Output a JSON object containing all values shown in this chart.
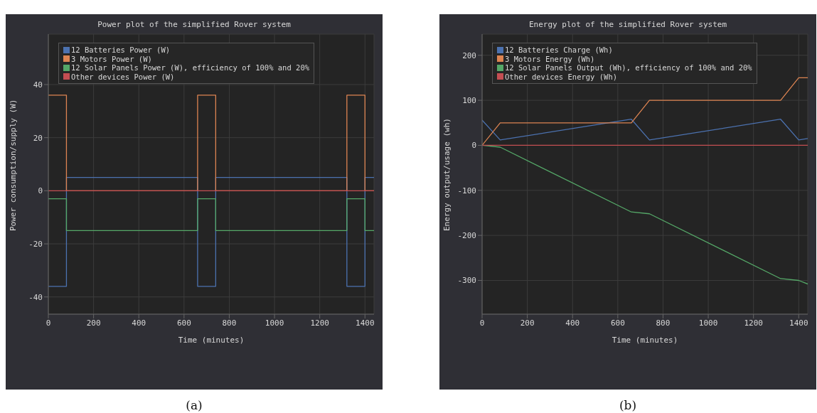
{
  "chart_data": [
    {
      "type": "line",
      "title": "Power plot of the simplified Rover system",
      "xlabel": "Time (minutes)",
      "ylabel": "Power consumption/supply (W)",
      "xlim": [
        0,
        1440
      ],
      "xticks": [
        0,
        200,
        400,
        600,
        800,
        1000,
        1200,
        1400
      ],
      "ylim": [
        -46.5,
        59
      ],
      "yticks": [
        -40,
        -20,
        0,
        20,
        40
      ],
      "grid": true,
      "legend": "top left",
      "marker": "none",
      "line_style": "solid",
      "annotations": [
        "(a)"
      ],
      "series": [
        {
          "name": "12 Batteries Power (W)",
          "color": "#4c72b0",
          "x": [
            0,
            80,
            80,
            660,
            660,
            740,
            740,
            1320,
            1320,
            1400,
            1400,
            1440
          ],
          "values": [
            -36,
            -36,
            5,
            5,
            -36,
            -36,
            5,
            5,
            -36,
            -36,
            5,
            5
          ]
        },
        {
          "name": "3 Motors Power (W)",
          "color": "#dd8452",
          "x": [
            0,
            80,
            80,
            660,
            660,
            740,
            740,
            1320,
            1320,
            1400,
            1400,
            1440
          ],
          "values": [
            36,
            36,
            0,
            0,
            36,
            36,
            0,
            0,
            36,
            36,
            0,
            0
          ]
        },
        {
          "name": "12 Solar Panels Power (W), efficiency of 100% and 20%",
          "color": "#55a868",
          "x": [
            0,
            80,
            80,
            660,
            660,
            740,
            740,
            1320,
            1320,
            1400,
            1400,
            1440
          ],
          "values": [
            -3,
            -3,
            -15,
            -15,
            -3,
            -3,
            -15,
            -15,
            -3,
            -3,
            -15,
            -15
          ]
        },
        {
          "name": "Other devices Power (W)",
          "color": "#c44e52",
          "x": [
            0,
            1440
          ],
          "values": [
            0,
            0
          ]
        }
      ]
    },
    {
      "type": "line",
      "title": "Energy plot of the simplified Rover system",
      "xlabel": "Time (minutes)",
      "ylabel": "Energy output/usage (wh)",
      "xlim": [
        0,
        1440
      ],
      "xticks": [
        0,
        200,
        400,
        600,
        800,
        1000,
        1200,
        1400
      ],
      "ylim": [
        -375,
        247
      ],
      "yticks": [
        -300,
        -200,
        -100,
        0,
        100,
        200
      ],
      "grid": true,
      "legend": "top left",
      "marker": "none",
      "line_style": "solid",
      "annotations": [
        "(b)"
      ],
      "series": [
        {
          "name": "12 Batteries Charge (Wh)",
          "color": "#4c72b0",
          "x": [
            0,
            80,
            660,
            740,
            1320,
            1400,
            1440
          ],
          "values": [
            56,
            12,
            58,
            12,
            58,
            12,
            15
          ]
        },
        {
          "name": "3 Motors Energy (Wh)",
          "color": "#dd8452",
          "x": [
            0,
            80,
            660,
            740,
            1320,
            1400,
            1440
          ],
          "values": [
            0,
            50,
            50,
            100,
            100,
            150,
            150
          ]
        },
        {
          "name": "12 Solar Panels Output (Wh), efficiency of 100% and 20%",
          "color": "#55a868",
          "x": [
            0,
            80,
            660,
            740,
            1320,
            1400,
            1440
          ],
          "values": [
            0,
            -4,
            -148,
            -152,
            -296,
            -300,
            -308
          ]
        },
        {
          "name": "Other devices Energy (Wh)",
          "color": "#c44e52",
          "x": [
            0,
            1440
          ],
          "values": [
            0,
            0
          ]
        }
      ]
    }
  ]
}
